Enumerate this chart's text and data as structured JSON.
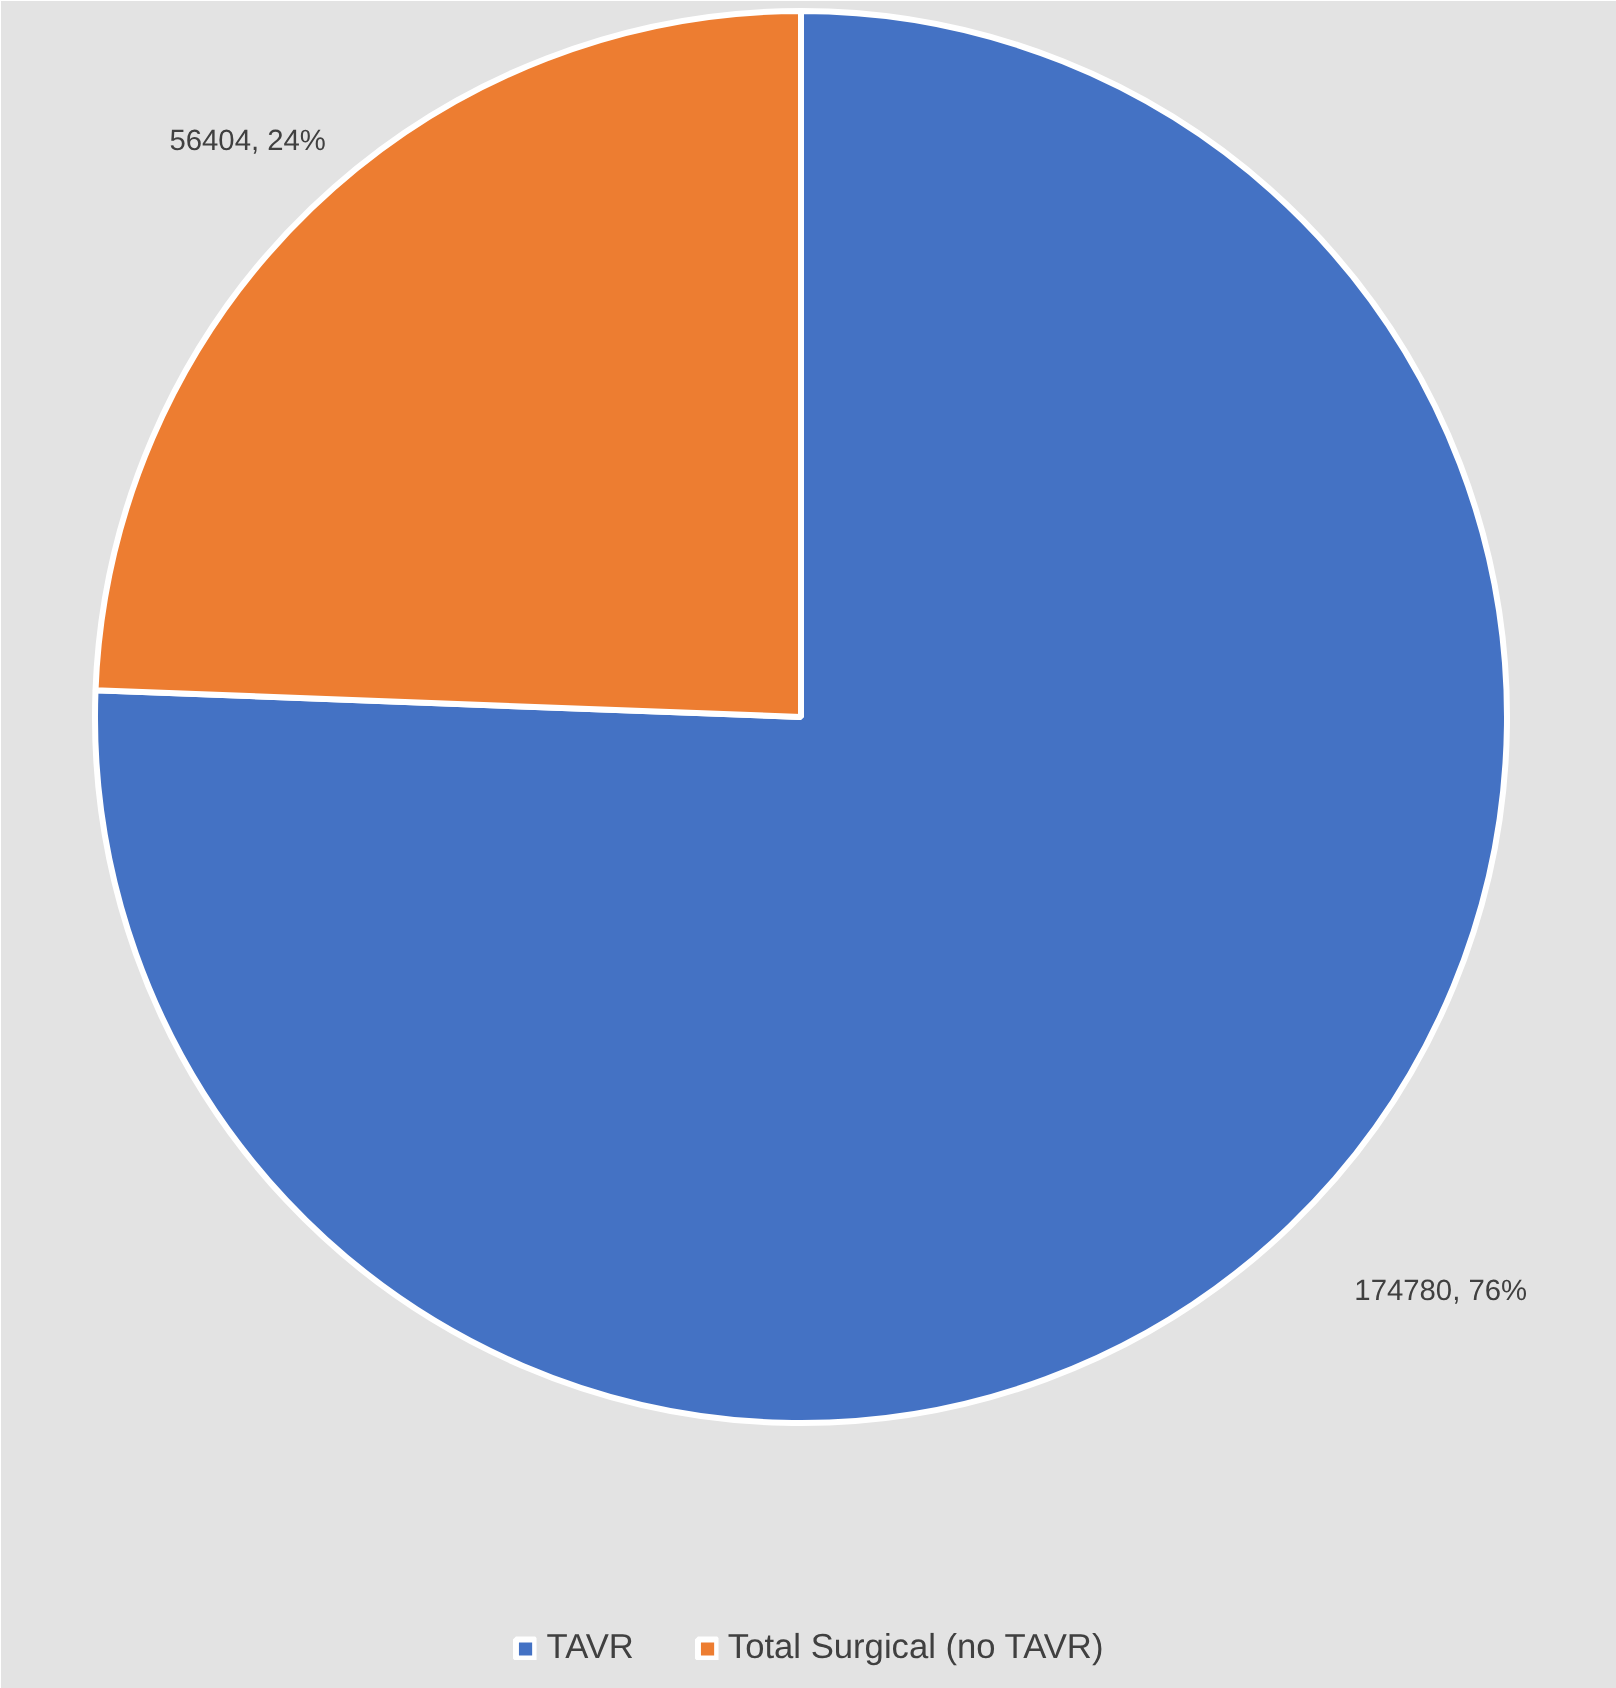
{
  "chart_data": {
    "type": "pie",
    "categories": [
      "TAVR",
      "Total Surgical (no TAVR)"
    ],
    "values": [
      174780,
      56404
    ],
    "colors": [
      "#4472c4",
      "#ed7d31"
    ],
    "value_labels": [
      "174780, 76%",
      "56404, 24%"
    ],
    "legend": "bottom"
  }
}
